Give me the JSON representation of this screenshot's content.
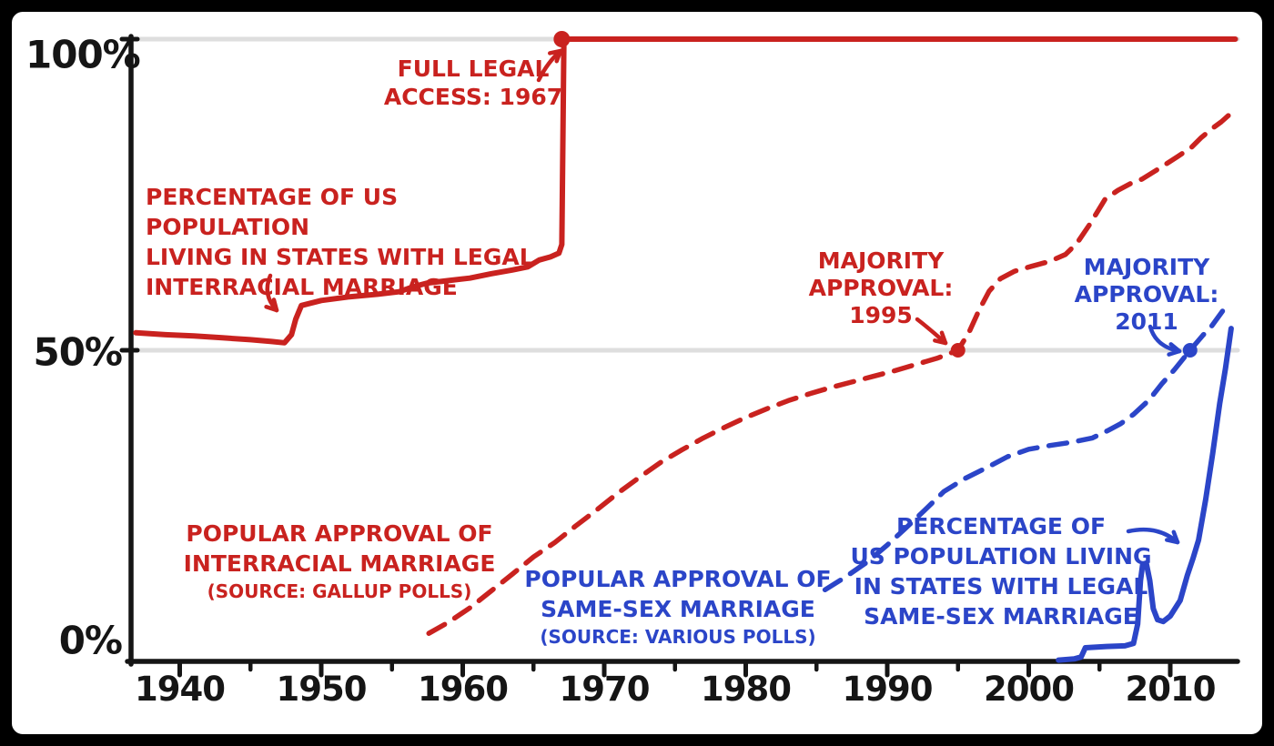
{
  "colors": {
    "red": "#c9221f",
    "blue": "#2b45c8",
    "grid": "#dedede",
    "axis": "#151515",
    "background": "#ffffff",
    "frame": "#000000"
  },
  "chart_data": {
    "type": "line",
    "title": "",
    "x_range": [
      1936.9,
      2014.6
    ],
    "y_range": [
      0,
      100
    ],
    "grid_values": [
      50,
      100
    ],
    "legend_position": "inline-annotations",
    "x_ticks_major": [
      1940,
      1950,
      1960,
      1970,
      1980,
      1990,
      2000,
      2010
    ],
    "x_ticks_minor": [
      1945,
      1955,
      1965,
      1975,
      1985,
      1995,
      2005
    ],
    "y_ticks": [
      {
        "label": "100%",
        "value": 100
      },
      {
        "label": "50%",
        "value": 50
      },
      {
        "label": "0%",
        "value": 0
      }
    ],
    "series": [
      {
        "name": "PERCENTAGE OF US POPULATION LIVING IN STATES WITH LEGAL INTERRACIAL MARRIAGE",
        "color": "red",
        "dash": "solid",
        "width": 6,
        "points": [
          [
            1936.9,
            52.8
          ],
          [
            1939,
            52.5
          ],
          [
            1941,
            52.3
          ],
          [
            1943,
            52.0
          ],
          [
            1945,
            51.7
          ],
          [
            1946.5,
            51.4
          ],
          [
            1947.4,
            51.2
          ],
          [
            1947.9,
            52.5
          ],
          [
            1948.2,
            55.0
          ],
          [
            1948.6,
            57.2
          ],
          [
            1950,
            58.0
          ],
          [
            1952,
            58.6
          ],
          [
            1954,
            59.0
          ],
          [
            1955.5,
            59.4
          ],
          [
            1956.5,
            60.2
          ],
          [
            1957.5,
            60.8
          ],
          [
            1959,
            61.2
          ],
          [
            1960.5,
            61.6
          ],
          [
            1962,
            62.3
          ],
          [
            1963.5,
            62.9
          ],
          [
            1964.6,
            63.4
          ],
          [
            1965.4,
            64.5
          ],
          [
            1966.2,
            65.0
          ],
          [
            1966.8,
            65.6
          ],
          [
            1967.0,
            67.0
          ],
          [
            1967.15,
            100
          ],
          [
            1980,
            100
          ],
          [
            1995,
            100
          ],
          [
            2005,
            100
          ],
          [
            2014.6,
            100
          ]
        ]
      },
      {
        "name": "POPULAR APPROVAL OF INTERRACIAL MARRIAGE (SOURCE: GALLUP POLLS)",
        "color": "red",
        "dash": "dashed",
        "width": 5.5,
        "points": [
          [
            1957.6,
            4.5
          ],
          [
            1959,
            6.3
          ],
          [
            1960.5,
            8.6
          ],
          [
            1962,
            11.3
          ],
          [
            1963.5,
            14.0
          ],
          [
            1965,
            16.8
          ],
          [
            1966.5,
            19.1
          ],
          [
            1968,
            21.8
          ],
          [
            1969.5,
            24.4
          ],
          [
            1971,
            27.1
          ],
          [
            1972.5,
            29.6
          ],
          [
            1974,
            32.0
          ],
          [
            1975.5,
            34.0
          ],
          [
            1977,
            35.9
          ],
          [
            1978.5,
            37.6
          ],
          [
            1980,
            39.2
          ],
          [
            1981.5,
            40.6
          ],
          [
            1983,
            41.9
          ],
          [
            1984.5,
            43.0
          ],
          [
            1986,
            44.0
          ],
          [
            1987.5,
            44.9
          ],
          [
            1989,
            45.8
          ],
          [
            1990.5,
            46.7
          ],
          [
            1992,
            47.7
          ],
          [
            1993.5,
            48.7
          ],
          [
            1995,
            50.0
          ],
          [
            1995.8,
            53.0
          ],
          [
            1996.5,
            56.5
          ],
          [
            1997.2,
            59.5
          ],
          [
            1998,
            61.5
          ],
          [
            1999,
            62.7
          ],
          [
            2000.2,
            63.5
          ],
          [
            2001.5,
            64.3
          ],
          [
            2002.6,
            65.4
          ],
          [
            2003.4,
            67.2
          ],
          [
            2004.3,
            70.2
          ],
          [
            2005.4,
            74.3
          ],
          [
            2006.3,
            75.7
          ],
          [
            2007.2,
            76.8
          ],
          [
            2008,
            77.5
          ],
          [
            2009.2,
            79.2
          ],
          [
            2010.5,
            81.1
          ],
          [
            2011.5,
            82.6
          ],
          [
            2012.2,
            84.2
          ],
          [
            2013,
            85.7
          ],
          [
            2013.6,
            86.7
          ],
          [
            2014.1,
            87.7
          ]
        ]
      },
      {
        "name": "POPULAR APPROVAL OF SAME-SEX MARRIAGE (SOURCE: VARIOUS POLLS)",
        "color": "blue",
        "dash": "dashed",
        "width": 5.5,
        "points": [
          [
            1985.6,
            11.5
          ],
          [
            1987,
            13.5
          ],
          [
            1988.6,
            16.0
          ],
          [
            1990,
            18.7
          ],
          [
            1991.2,
            21.2
          ],
          [
            1992.6,
            24.2
          ],
          [
            1994,
            27.3
          ],
          [
            1995.5,
            29.4
          ],
          [
            1997,
            31.1
          ],
          [
            1998.5,
            32.9
          ],
          [
            2000,
            34.1
          ],
          [
            2001.5,
            34.7
          ],
          [
            2003,
            35.2
          ],
          [
            2004.5,
            35.9
          ],
          [
            2005.6,
            37.1
          ],
          [
            2006.5,
            38.2
          ],
          [
            2007.4,
            39.7
          ],
          [
            2008.5,
            42.0
          ],
          [
            2009.4,
            44.6
          ],
          [
            2010.3,
            46.9
          ],
          [
            2011.4,
            50.0
          ],
          [
            2012.3,
            52.4
          ],
          [
            2012.9,
            53.8
          ],
          [
            2013.7,
            56.3
          ]
        ]
      },
      {
        "name": "PERCENTAGE OF US POPULATION LIVING IN STATES WITH LEGAL SAME-SEX MARRIAGE",
        "color": "blue",
        "dash": "solid",
        "width": 6,
        "points": [
          [
            2002.1,
            0.2
          ],
          [
            2003.2,
            0.4
          ],
          [
            2003.7,
            0.7
          ],
          [
            2004.0,
            2.2
          ],
          [
            2005.5,
            2.4
          ],
          [
            2006.8,
            2.5
          ],
          [
            2007.4,
            2.9
          ],
          [
            2007.7,
            6.0
          ],
          [
            2007.9,
            13.0
          ],
          [
            2008.05,
            15.6
          ],
          [
            2008.3,
            15.8
          ],
          [
            2008.55,
            13.0
          ],
          [
            2008.8,
            8.5
          ],
          [
            2009.1,
            6.7
          ],
          [
            2009.5,
            6.4
          ],
          [
            2010,
            7.3
          ],
          [
            2010.7,
            9.8
          ],
          [
            2011.2,
            13.8
          ],
          [
            2011.6,
            16.5
          ],
          [
            2012,
            19.5
          ],
          [
            2012.5,
            26.0
          ],
          [
            2013,
            33.5
          ],
          [
            2013.5,
            41.5
          ],
          [
            2013.9,
            47.0
          ],
          [
            2014.15,
            51.0
          ],
          [
            2014.3,
            53.5
          ]
        ]
      }
    ],
    "markers": [
      {
        "x": 1967,
        "y": 100,
        "r": 9,
        "color": "red",
        "meaning": "full legal access 1967"
      },
      {
        "x": 1995,
        "y": 50,
        "r": 8,
        "color": "red",
        "meaning": "majority approval 1995"
      },
      {
        "x": 2011.4,
        "y": 50,
        "r": 8,
        "color": "blue",
        "meaning": "majority approval 2011"
      }
    ]
  },
  "annotations": {
    "full_legal_access": {
      "color": "red",
      "lines": [
        "FULL LEGAL",
        "ACCESS: 1967"
      ],
      "arrow": {
        "from": [
          592,
          88
        ],
        "ctrl": [
          602,
          68
        ],
        "to": [
          616,
          56
        ]
      }
    },
    "interracial_population": {
      "color": "red",
      "lines": [
        "PERCENTAGE OF US POPULATION",
        "LIVING IN STATES WITH LEGAL",
        "INTERRACIAL MARRIAGE"
      ],
      "arrow": {
        "from": [
          297,
          303
        ],
        "ctrl": [
          288,
          324
        ],
        "to": [
          304,
          341
        ]
      }
    },
    "majority_approval_1995": {
      "color": "red",
      "lines": [
        "MAJORITY",
        "APPROVAL:",
        "1995"
      ],
      "arrow": {
        "from": [
          1008,
          351
        ],
        "ctrl": [
          1021,
          361
        ],
        "to": [
          1039,
          377
        ]
      }
    },
    "majority_approval_2011": {
      "color": "blue",
      "lines": [
        "MAJORITY",
        "APPROVAL:",
        "2011"
      ],
      "arrow": {
        "from": [
          1264,
          359
        ],
        "ctrl": [
          1270,
          381
        ],
        "to": [
          1296,
          386
        ]
      }
    },
    "interracial_approval": {
      "color": "red",
      "lines": [
        "POPULAR APPROVAL OF",
        "INTERRACIAL MARRIAGE",
        "(SOURCE: GALLUP POLLS)"
      ]
    },
    "ssm_approval": {
      "color": "blue",
      "lines": [
        "POPULAR APPROVAL OF",
        "SAME-SEX MARRIAGE",
        "(SOURCE: VARIOUS POLLS)"
      ]
    },
    "ssm_population": {
      "color": "blue",
      "lines": [
        "PERCENTAGE OF",
        "US POPULATION LIVING",
        "IN STATES WITH LEGAL",
        "SAME-SEX MARRIAGE"
      ],
      "arrow": {
        "from": [
          1240,
          584
        ],
        "ctrl": [
          1272,
          577
        ],
        "to": [
          1294,
          596
        ]
      }
    }
  }
}
